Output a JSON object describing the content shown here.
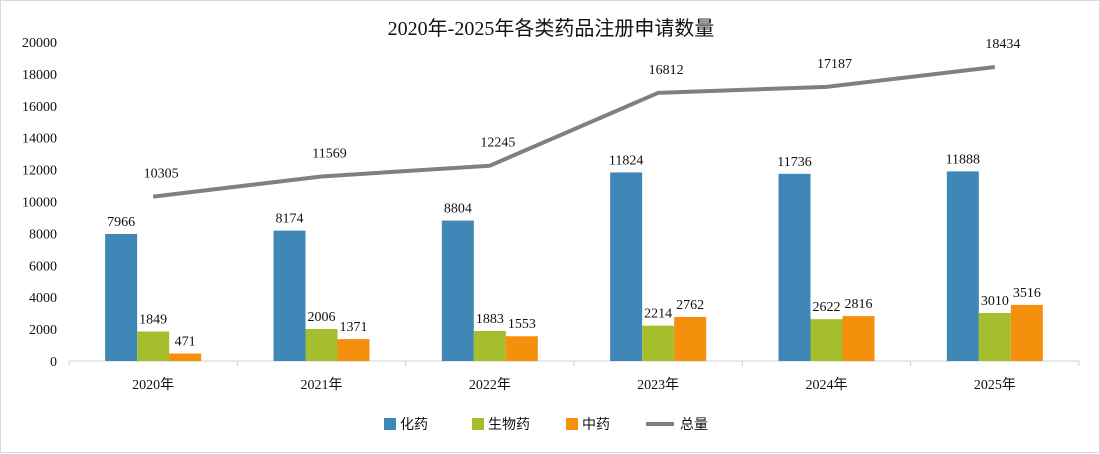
{
  "chart_data": {
    "type": "bar",
    "title": "2020年-2025年各类药品注册申请数量",
    "categories": [
      "2020年",
      "2021年",
      "2022年",
      "2023年",
      "2024年",
      "2025年"
    ],
    "series": [
      {
        "name": "化药",
        "type": "bar",
        "color": "#3F87B6",
        "values": [
          7966,
          8174,
          8804,
          11824,
          11736,
          11888
        ]
      },
      {
        "name": "生物药",
        "type": "bar",
        "color": "#A4BE2E",
        "values": [
          1849,
          2006,
          1883,
          2214,
          2622,
          3010
        ]
      },
      {
        "name": "中药",
        "type": "bar",
        "color": "#F5900C",
        "values": [
          471,
          1371,
          1553,
          2762,
          2816,
          3516
        ]
      },
      {
        "name": "总量",
        "type": "line",
        "color": "#808080",
        "values": [
          10305,
          11569,
          12245,
          16812,
          17187,
          18434
        ]
      }
    ],
    "ylim": [
      0,
      20000
    ],
    "yticks": [
      "0",
      "2000",
      "4000",
      "6000",
      "8000",
      "10000",
      "12000",
      "14000",
      "16000",
      "18000",
      "20000"
    ],
    "xlabel": "",
    "ylabel": "",
    "grid": false,
    "legend": "bottom"
  }
}
